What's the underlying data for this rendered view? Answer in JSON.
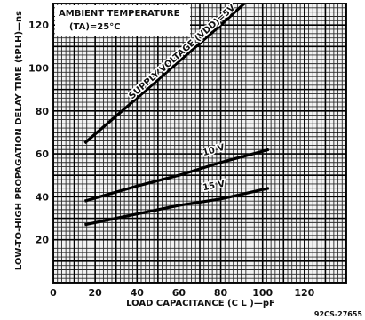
{
  "chart_data": {
    "type": "line",
    "xlabel": "LOAD CAPACITANCE (C L )—pF",
    "ylabel": "LOW-TO-HIGH PROPAGATION DELAY TIME (tPLH)—ns",
    "xlim": [
      0,
      140
    ],
    "ylim": [
      0,
      130
    ],
    "x_ticks": [
      "0",
      "20",
      "40",
      "60",
      "80",
      "100",
      "120"
    ],
    "y_ticks": [
      "20",
      "40",
      "60",
      "80",
      "100",
      "120"
    ],
    "grid": true,
    "annotation": {
      "line1": "AMBIENT TEMPERATURE",
      "line2": "(TA)=25°C"
    },
    "figure_id": "92CS-27655",
    "series": [
      {
        "name": "SUPPLY VOLTAGE (VDD)=5V",
        "x": [
          15,
          40,
          60,
          80,
          98
        ],
        "y": [
          65,
          86,
          103,
          120,
          136
        ]
      },
      {
        "name": "10 V",
        "x": [
          15,
          40,
          60,
          80,
          103
        ],
        "y": [
          38,
          45,
          50,
          56,
          62
        ]
      },
      {
        "name": "15 V",
        "x": [
          15,
          40,
          60,
          80,
          103
        ],
        "y": [
          27,
          32,
          36,
          39,
          44
        ]
      }
    ]
  }
}
